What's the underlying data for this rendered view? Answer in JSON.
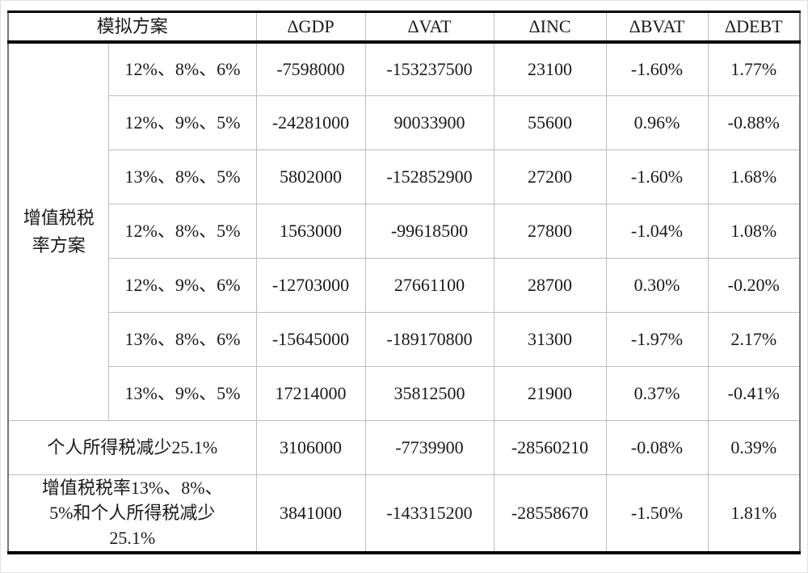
{
  "table": {
    "header": {
      "scheme_label": "模拟方案",
      "columns": [
        "ΔGDP",
        "ΔVAT",
        "ΔINC",
        "ΔBVAT",
        "ΔDEBT"
      ]
    },
    "group_label": "增值税税率方案",
    "vat_rows": [
      {
        "scheme": "12%、8%、6%",
        "gdp": "-7598000",
        "vat": "-153237500",
        "inc": "23100",
        "bvat": "-1.60%",
        "debt": "1.77%"
      },
      {
        "scheme": "12%、9%、5%",
        "gdp": "-24281000",
        "vat": "90033900",
        "inc": "55600",
        "bvat": "0.96%",
        "debt": "-0.88%"
      },
      {
        "scheme": "13%、8%、5%",
        "gdp": "5802000",
        "vat": "-152852900",
        "inc": "27200",
        "bvat": "-1.60%",
        "debt": "1.68%"
      },
      {
        "scheme": "12%、8%、5%",
        "gdp": "1563000",
        "vat": "-99618500",
        "inc": "27800",
        "bvat": "-1.04%",
        "debt": "1.08%"
      },
      {
        "scheme": "12%、9%、6%",
        "gdp": "-12703000",
        "vat": "27661100",
        "inc": "28700",
        "bvat": "0.30%",
        "debt": "-0.20%"
      },
      {
        "scheme": "13%、8%、6%",
        "gdp": "-15645000",
        "vat": "-189170800",
        "inc": "31300",
        "bvat": "-1.97%",
        "debt": "2.17%"
      },
      {
        "scheme": "13%、9%、5%",
        "gdp": "17214000",
        "vat": "35812500",
        "inc": "21900",
        "bvat": "0.37%",
        "debt": "-0.41%"
      }
    ],
    "extra_rows": [
      {
        "scheme": "个人所得税减少25.1%",
        "gdp": "3106000",
        "vat": "-7739900",
        "inc": "-28560210",
        "bvat": "-0.08%",
        "debt": "0.39%"
      },
      {
        "scheme": "增值税税率13%、8%、5%和个人所得税减少25.1%",
        "scheme_lines": [
          "增值税税率13%、8%、",
          "5%和个人所得税减少",
          "25.1%"
        ],
        "gdp": "3841000",
        "vat": "-143315200",
        "inc": "-28558670",
        "bvat": "-1.50%",
        "debt": "1.81%"
      }
    ],
    "colors": {
      "heavy_rule": "#000000",
      "grid_line": "#bdbdbd",
      "text": "#1a1a1a",
      "background": "#ffffff"
    }
  }
}
